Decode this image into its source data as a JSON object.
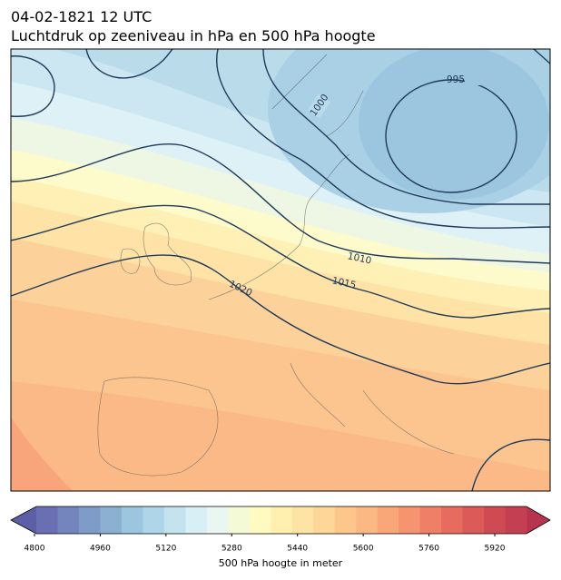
{
  "header": {
    "date": "04-02-1821 12 UTC",
    "title": "Luchtdruk op zeeniveau in hPa en 500 hPa hoogte"
  },
  "map": {
    "contour_labels": [
      "995",
      "1000",
      "1010",
      "1015",
      "1020"
    ]
  },
  "colorbar": {
    "label": "500 hPa hoogte in meter",
    "ticks": [
      4800,
      4960,
      5120,
      5280,
      5440,
      5600,
      5760,
      5920
    ]
  }
}
